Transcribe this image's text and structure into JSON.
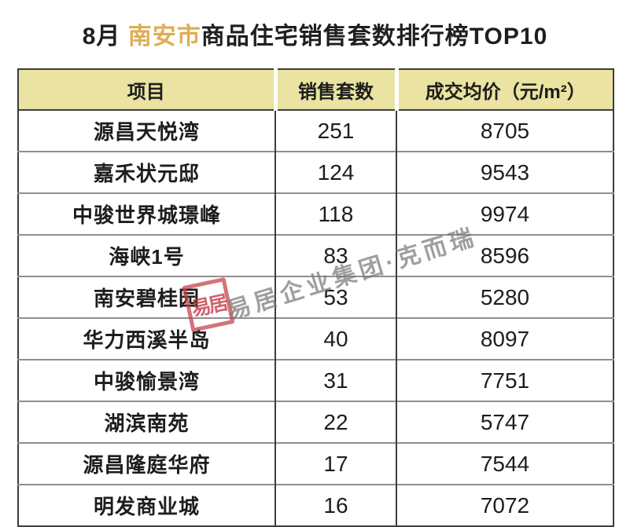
{
  "title": {
    "prefix": "8月 ",
    "highlight": "南安市",
    "suffix": "商品住宅销售套数排行榜TOP10"
  },
  "colors": {
    "title_highlight": "#dfad55",
    "header_bg": "#eae3a1",
    "grid_dark": "#3d3d3d",
    "row_line_gray": "#8f8f8f",
    "watermark_gray": "#7a7a7a",
    "seal_red": "#c43b47"
  },
  "table": {
    "headers": {
      "project": "项目",
      "units": "销售套数",
      "price": "成交均价（元/m²）"
    },
    "rows": [
      {
        "project": "源昌天悦湾",
        "units": "251",
        "price": "8705"
      },
      {
        "project": "嘉禾状元邸",
        "units": "124",
        "price": "9543"
      },
      {
        "project": "中骏世界城璟峰",
        "units": "118",
        "price": "9974"
      },
      {
        "project": "海峡1号",
        "units": "83",
        "price": "8596"
      },
      {
        "project": "南安碧桂园",
        "units": "53",
        "price": "5280"
      },
      {
        "project": "华力西溪半岛",
        "units": "40",
        "price": "8097"
      },
      {
        "project": "中骏愉景湾",
        "units": "31",
        "price": "7751"
      },
      {
        "project": "湖滨南苑",
        "units": "22",
        "price": "5747"
      },
      {
        "project": "源昌隆庭华府",
        "units": "17",
        "price": "7544"
      },
      {
        "project": "明发商业城",
        "units": "16",
        "price": "7072"
      }
    ]
  },
  "watermark": {
    "seal_text": "易居",
    "text": "易居企业集团·克而瑞"
  },
  "chart_data": {
    "type": "table",
    "title": "8月 南安市商品住宅销售套数排行榜TOP10",
    "columns": [
      "项目",
      "销售套数",
      "成交均价（元/m²）"
    ],
    "rows": [
      [
        "源昌天悦湾",
        251,
        8705
      ],
      [
        "嘉禾状元邸",
        124,
        9543
      ],
      [
        "中骏世界城璟峰",
        118,
        9974
      ],
      [
        "海峡1号",
        83,
        8596
      ],
      [
        "南安碧桂园",
        53,
        5280
      ],
      [
        "华力西溪半岛",
        40,
        8097
      ],
      [
        "中骏愉景湾",
        31,
        7751
      ],
      [
        "湖滨南苑",
        22,
        5747
      ],
      [
        "源昌隆庭华府",
        17,
        7544
      ],
      [
        "明发商业城",
        16,
        7072
      ]
    ]
  }
}
